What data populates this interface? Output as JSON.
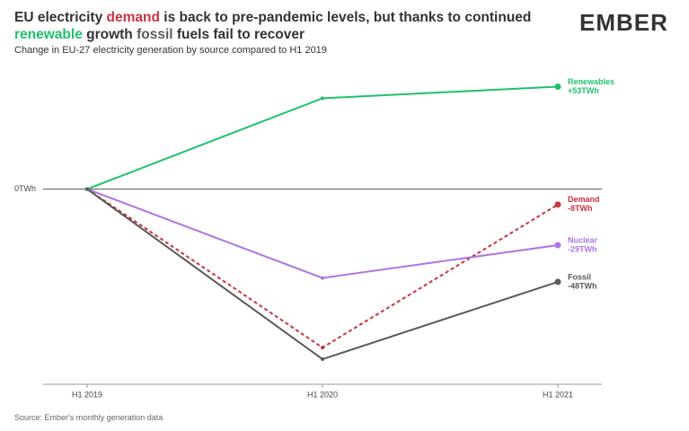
{
  "chart_data": {
    "type": "line",
    "title_parts": [
      {
        "text": "EU electricity ",
        "color": "#333333"
      },
      {
        "text": "demand",
        "color": "#c8333d"
      },
      {
        "text": " is back to pre-pandemic levels, but thanks to continued ",
        "color": "#333333"
      },
      {
        "text": "renewable",
        "color": "#1fc26b"
      },
      {
        "text": " growth ",
        "color": "#333333"
      },
      {
        "text": "fossil",
        "color": "#5a5a5a"
      },
      {
        "text": " fuels fail to recover",
        "color": "#333333"
      }
    ],
    "subtitle": "Change in EU-27 electricity generation by source compared to H1 2019",
    "logo": "EMBER",
    "source": "Source: Ember's monthly generation data",
    "categories": [
      "H1 2019",
      "H1 2020",
      "H1 2021"
    ],
    "series": [
      {
        "name": "Renewables",
        "color": "#1fc26b",
        "style": "solid",
        "values": [
          0,
          47,
          53
        ],
        "value_labels": [
          null,
          null,
          "+53TWh"
        ]
      },
      {
        "name": "Demand",
        "color": "#c8333d",
        "style": "dashed",
        "values": [
          0,
          -82,
          -8
        ],
        "value_labels": [
          null,
          null,
          "-8TWh"
        ]
      },
      {
        "name": "Nuclear",
        "color": "#b074e0",
        "style": "solid",
        "values": [
          0,
          -46,
          -29
        ],
        "value_labels": [
          null,
          null,
          "-29TWh"
        ]
      },
      {
        "name": "Fossil",
        "color": "#5a5a5a",
        "style": "solid",
        "values": [
          0,
          -88,
          -48
        ],
        "value_labels": [
          null,
          null,
          "-48TWh"
        ]
      }
    ],
    "ylim": [
      -101,
      63
    ],
    "yticks": [
      {
        "value": 0,
        "label": "0TWh"
      }
    ]
  }
}
